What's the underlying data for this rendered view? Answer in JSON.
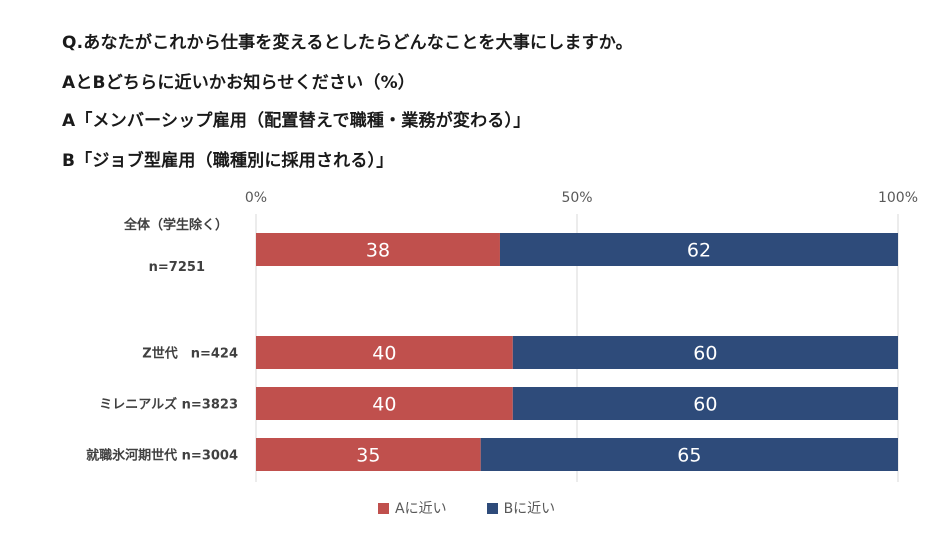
{
  "header": {
    "lines": [
      "Q.あなたがこれから仕事を変えるとしたらどんなことを大事にしますか。",
      "AとBどちらに近いかお知らせください（%）",
      "A「メンバーシップ雇用（配置替えで職種・業務が変わる）」",
      "B「ジョブ型雇用（職種別に採用される）」"
    ]
  },
  "chart_data": {
    "type": "bar",
    "orientation": "horizontal",
    "stacked": true,
    "xlim": [
      0,
      100
    ],
    "xticks": [
      "0%",
      "50%",
      "100%"
    ],
    "grid": true,
    "categories": [
      {
        "line1": "全体（学生除く）",
        "line2": "n=7251"
      },
      {
        "line1": "Z世代　n=424"
      },
      {
        "line1": "ミレニアルズ n=3823"
      },
      {
        "line1": "就職氷河期世代 n=3004"
      }
    ],
    "series": [
      {
        "name": "Aに近い",
        "color": "#c0504d",
        "values": [
          38,
          40,
          40,
          35
        ]
      },
      {
        "name": "Bに近い",
        "color": "#2e4b7a",
        "values": [
          62,
          60,
          60,
          65
        ]
      }
    ],
    "legend_position": "bottom"
  }
}
